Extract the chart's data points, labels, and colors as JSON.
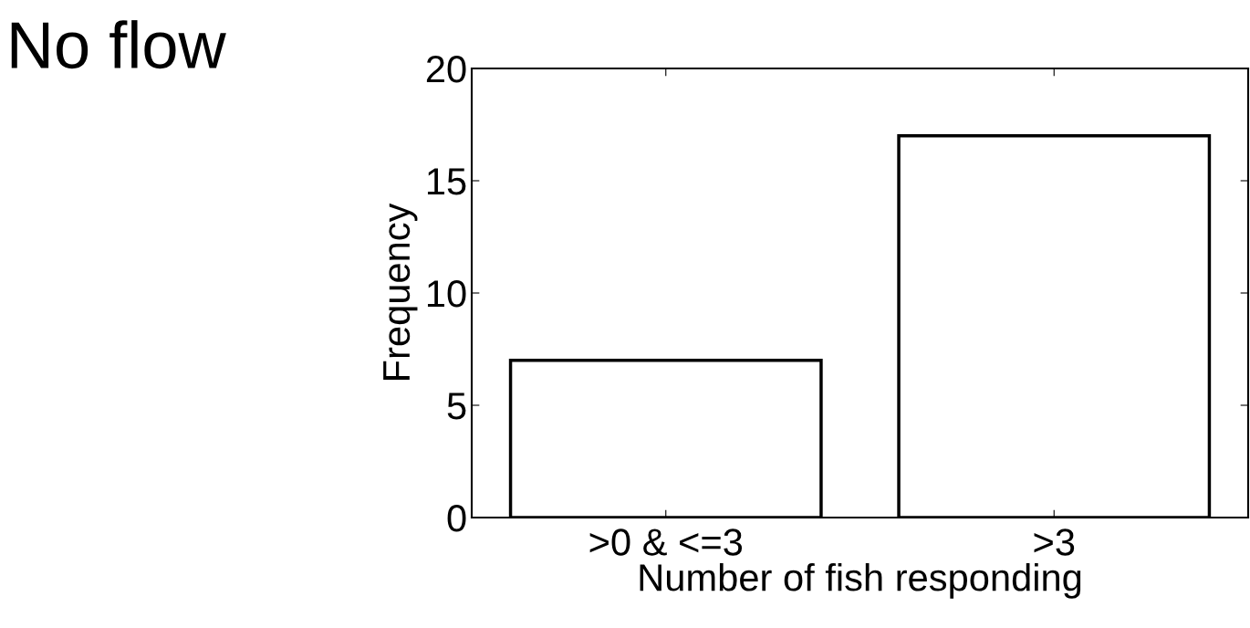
{
  "chart_data": {
    "type": "bar",
    "title": "No flow",
    "xlabel": "Number of fish responding",
    "ylabel": "Frequency",
    "categories": [
      ">0 & <=3",
      ">3"
    ],
    "values": [
      7,
      17
    ],
    "color": "#ffffff",
    "ylim": [
      0,
      20
    ],
    "yticks": [
      0,
      5,
      10,
      15,
      20
    ],
    "grid": false
  }
}
